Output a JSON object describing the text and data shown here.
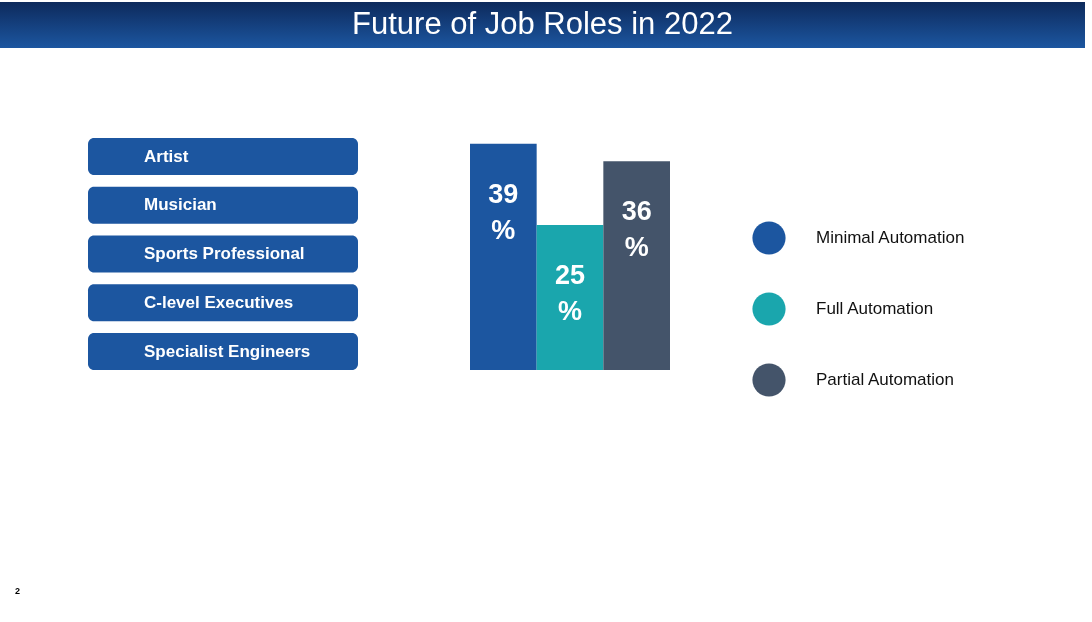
{
  "chart_data": {
    "type": "bar",
    "title": "Future of Job Roles in 2022",
    "categories": [
      null
    ],
    "series": [
      {
        "name": "Minimal Automation",
        "color": "#1c56a0",
        "values": [
          39
        ],
        "value_labels": [
          "39 %"
        ]
      },
      {
        "name": "Full Automation",
        "color": "#1aa6ad",
        "values": [
          25
        ],
        "value_labels": [
          "25 %"
        ]
      },
      {
        "name": "Partial Automation",
        "color": "#44546a",
        "values": [
          36
        ],
        "value_labels": [
          "36 %"
        ]
      }
    ],
    "legend": "right",
    "annotations": [
      "Artist",
      "Musician",
      "Sports Professional",
      "C-level Executives",
      "Specialist Engineers",
      "2"
    ]
  }
}
